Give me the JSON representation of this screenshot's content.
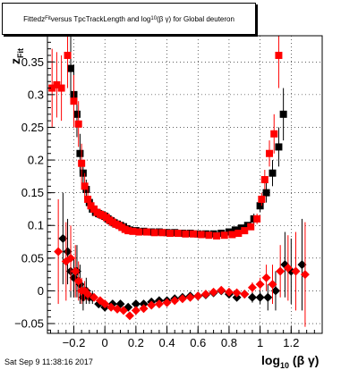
{
  "title": {
    "pre": "Fitted ",
    "z_main": "z",
    "z_sub": "Fit",
    "mid": " versus TpcTrackLength and log",
    "log_sub": "10",
    "post": "(β γ) for Global deuteron"
  },
  "timestamp": "Sat Sep  9 11:38:16 2017",
  "chart_data": {
    "type": "scatter",
    "title": "Fitted z_Fit versus TpcTrackLength and log10(β γ) for Global deuteron",
    "xlabel": "log10(β γ)",
    "ylabel": "z_Fit",
    "xlim": [
      -0.37,
      1.4
    ],
    "ylim": [
      -0.065,
      0.39
    ],
    "x_ticks": [
      -0.2,
      0,
      0.2,
      0.4,
      0.6,
      0.8,
      1,
      1.2
    ],
    "x_tick_labels": [
      "−0.2",
      "0",
      "0.2",
      "0.4",
      "0.6",
      "0.8",
      "1",
      "1.2"
    ],
    "y_ticks": [
      -0.05,
      0,
      0.05,
      0.1,
      0.15,
      0.2,
      0.25,
      0.3,
      0.35
    ],
    "y_tick_labels": [
      "−0.05",
      "0",
      "0.05",
      "0.1",
      "0.15",
      "0.2",
      "0.25",
      "0.3",
      "0.35"
    ],
    "grid": true,
    "series": [
      {
        "marker": "square",
        "color": "#000000",
        "points": [
          {
            "x": -0.22,
            "y": 0.34,
            "e": 0.05
          },
          {
            "x": -0.2,
            "y": 0.3,
            "e": 0.04
          },
          {
            "x": -0.18,
            "y": 0.27,
            "e": 0.035
          },
          {
            "x": -0.16,
            "y": 0.21,
            "e": 0.03
          },
          {
            "x": -0.14,
            "y": 0.18,
            "e": 0.02
          },
          {
            "x": -0.12,
            "y": 0.155,
            "e": 0.015
          },
          {
            "x": -0.1,
            "y": 0.135,
            "e": 0.01
          },
          {
            "x": -0.08,
            "y": 0.125,
            "e": 0.008
          },
          {
            "x": -0.06,
            "y": 0.12,
            "e": 0.006
          },
          {
            "x": -0.04,
            "y": 0.118,
            "e": 0.005
          },
          {
            "x": -0.02,
            "y": 0.116,
            "e": 0.004
          },
          {
            "x": 0.0,
            "y": 0.114,
            "e": 0.003
          },
          {
            "x": 0.02,
            "y": 0.11,
            "e": 0.003
          },
          {
            "x": 0.04,
            "y": 0.107,
            "e": 0.003
          },
          {
            "x": 0.06,
            "y": 0.104,
            "e": 0.003
          },
          {
            "x": 0.08,
            "y": 0.102,
            "e": 0.003
          },
          {
            "x": 0.1,
            "y": 0.1,
            "e": 0.003
          },
          {
            "x": 0.12,
            "y": 0.098,
            "e": 0.003
          },
          {
            "x": 0.14,
            "y": 0.095,
            "e": 0.003
          },
          {
            "x": 0.16,
            "y": 0.093,
            "e": 0.003
          },
          {
            "x": 0.2,
            "y": 0.092,
            "e": 0.003
          },
          {
            "x": 0.25,
            "y": 0.091,
            "e": 0.003
          },
          {
            "x": 0.3,
            "y": 0.09,
            "e": 0.003
          },
          {
            "x": 0.35,
            "y": 0.09,
            "e": 0.003
          },
          {
            "x": 0.4,
            "y": 0.089,
            "e": 0.003
          },
          {
            "x": 0.45,
            "y": 0.089,
            "e": 0.003
          },
          {
            "x": 0.5,
            "y": 0.088,
            "e": 0.003
          },
          {
            "x": 0.55,
            "y": 0.088,
            "e": 0.003
          },
          {
            "x": 0.6,
            "y": 0.087,
            "e": 0.003
          },
          {
            "x": 0.65,
            "y": 0.087,
            "e": 0.003
          },
          {
            "x": 0.7,
            "y": 0.087,
            "e": 0.003
          },
          {
            "x": 0.75,
            "y": 0.088,
            "e": 0.003
          },
          {
            "x": 0.8,
            "y": 0.09,
            "e": 0.003
          },
          {
            "x": 0.84,
            "y": 0.093,
            "e": 0.003
          },
          {
            "x": 0.88,
            "y": 0.096,
            "e": 0.004
          },
          {
            "x": 0.92,
            "y": 0.1,
            "e": 0.005
          },
          {
            "x": 0.96,
            "y": 0.11,
            "e": 0.008
          },
          {
            "x": 1.0,
            "y": 0.13,
            "e": 0.01
          },
          {
            "x": 1.04,
            "y": 0.15,
            "e": 0.015
          },
          {
            "x": 1.08,
            "y": 0.18,
            "e": 0.02
          },
          {
            "x": 1.12,
            "y": 0.22,
            "e": 0.03
          },
          {
            "x": 1.15,
            "y": 0.27,
            "e": 0.04
          }
        ]
      },
      {
        "marker": "square",
        "color": "#ff0000",
        "points": [
          {
            "x": -0.34,
            "y": 0.31,
            "e": 0.06
          },
          {
            "x": -0.31,
            "y": 0.315,
            "e": 0.05
          },
          {
            "x": -0.28,
            "y": 0.31,
            "e": 0.05
          },
          {
            "x": -0.24,
            "y": 0.36,
            "e": 0.05
          },
          {
            "x": -0.2,
            "y": 0.29,
            "e": 0.04
          },
          {
            "x": -0.17,
            "y": 0.255,
            "e": 0.035
          },
          {
            "x": -0.15,
            "y": 0.195,
            "e": 0.03
          },
          {
            "x": -0.13,
            "y": 0.16,
            "e": 0.02
          },
          {
            "x": -0.11,
            "y": 0.14,
            "e": 0.015
          },
          {
            "x": -0.09,
            "y": 0.13,
            "e": 0.01
          },
          {
            "x": -0.07,
            "y": 0.125,
            "e": 0.008
          },
          {
            "x": -0.05,
            "y": 0.12,
            "e": 0.006
          },
          {
            "x": -0.03,
            "y": 0.117,
            "e": 0.005
          },
          {
            "x": -0.01,
            "y": 0.115,
            "e": 0.004
          },
          {
            "x": 0.01,
            "y": 0.112,
            "e": 0.003
          },
          {
            "x": 0.03,
            "y": 0.108,
            "e": 0.003
          },
          {
            "x": 0.05,
            "y": 0.105,
            "e": 0.003
          },
          {
            "x": 0.07,
            "y": 0.102,
            "e": 0.003
          },
          {
            "x": 0.09,
            "y": 0.1,
            "e": 0.003
          },
          {
            "x": 0.11,
            "y": 0.097,
            "e": 0.003
          },
          {
            "x": 0.13,
            "y": 0.094,
            "e": 0.003
          },
          {
            "x": 0.15,
            "y": 0.092,
            "e": 0.003
          },
          {
            "x": 0.18,
            "y": 0.091,
            "e": 0.003
          },
          {
            "x": 0.22,
            "y": 0.09,
            "e": 0.003
          },
          {
            "x": 0.27,
            "y": 0.09,
            "e": 0.003
          },
          {
            "x": 0.32,
            "y": 0.089,
            "e": 0.003
          },
          {
            "x": 0.37,
            "y": 0.089,
            "e": 0.003
          },
          {
            "x": 0.42,
            "y": 0.088,
            "e": 0.003
          },
          {
            "x": 0.47,
            "y": 0.088,
            "e": 0.003
          },
          {
            "x": 0.52,
            "y": 0.087,
            "e": 0.003
          },
          {
            "x": 0.57,
            "y": 0.087,
            "e": 0.003
          },
          {
            "x": 0.62,
            "y": 0.086,
            "e": 0.003
          },
          {
            "x": 0.67,
            "y": 0.085,
            "e": 0.003
          },
          {
            "x": 0.72,
            "y": 0.084,
            "e": 0.003
          },
          {
            "x": 0.77,
            "y": 0.085,
            "e": 0.003
          },
          {
            "x": 0.82,
            "y": 0.086,
            "e": 0.003
          },
          {
            "x": 0.86,
            "y": 0.088,
            "e": 0.003
          },
          {
            "x": 0.9,
            "y": 0.092,
            "e": 0.004
          },
          {
            "x": 0.94,
            "y": 0.098,
            "e": 0.005
          },
          {
            "x": 0.98,
            "y": 0.11,
            "e": 0.008
          },
          {
            "x": 1.01,
            "y": 0.14,
            "e": 0.01
          },
          {
            "x": 1.03,
            "y": 0.17,
            "e": 0.015
          },
          {
            "x": 1.06,
            "y": 0.21,
            "e": 0.02
          },
          {
            "x": 1.09,
            "y": 0.24,
            "e": 0.03
          },
          {
            "x": 1.12,
            "y": 0.36,
            "e": 0.05
          }
        ]
      },
      {
        "marker": "diamond",
        "color": "#000000",
        "points": [
          {
            "x": -0.27,
            "y": 0.08,
            "e": 0.07
          },
          {
            "x": -0.24,
            "y": 0.06,
            "e": 0.05
          },
          {
            "x": -0.22,
            "y": 0.03,
            "e": 0.04
          },
          {
            "x": -0.2,
            "y": 0.02,
            "e": 0.03
          },
          {
            "x": -0.18,
            "y": 0.03,
            "e": 0.04
          },
          {
            "x": -0.16,
            "y": 0.01,
            "e": 0.03
          },
          {
            "x": -0.14,
            "y": -0.01,
            "e": 0.02
          },
          {
            "x": -0.12,
            "y": 0.0,
            "e": 0.02
          },
          {
            "x": -0.1,
            "y": -0.01,
            "e": 0.01
          },
          {
            "x": -0.08,
            "y": -0.01,
            "e": 0.01
          },
          {
            "x": -0.04,
            "y": -0.02,
            "e": 0.005
          },
          {
            "x": 0.0,
            "y": -0.025,
            "e": 0.004
          },
          {
            "x": 0.05,
            "y": -0.02,
            "e": 0.003
          },
          {
            "x": 0.1,
            "y": -0.02,
            "e": 0.003
          },
          {
            "x": 0.15,
            "y": -0.025,
            "e": 0.003
          },
          {
            "x": 0.2,
            "y": -0.02,
            "e": 0.003
          },
          {
            "x": 0.25,
            "y": -0.02,
            "e": 0.003
          },
          {
            "x": 0.3,
            "y": -0.017,
            "e": 0.003
          },
          {
            "x": 0.35,
            "y": -0.015,
            "e": 0.003
          },
          {
            "x": 0.4,
            "y": -0.015,
            "e": 0.003
          },
          {
            "x": 0.45,
            "y": -0.012,
            "e": 0.003
          },
          {
            "x": 0.5,
            "y": -0.01,
            "e": 0.003
          },
          {
            "x": 0.55,
            "y": -0.008,
            "e": 0.003
          },
          {
            "x": 0.6,
            "y": -0.008,
            "e": 0.003
          },
          {
            "x": 0.65,
            "y": -0.006,
            "e": 0.003
          },
          {
            "x": 0.7,
            "y": -0.003,
            "e": 0.003
          },
          {
            "x": 0.75,
            "y": 0.0,
            "e": 0.003
          },
          {
            "x": 0.8,
            "y": -0.005,
            "e": 0.003
          },
          {
            "x": 0.85,
            "y": -0.01,
            "e": 0.004
          },
          {
            "x": 0.9,
            "y": -0.005,
            "e": 0.005
          },
          {
            "x": 0.95,
            "y": -0.01,
            "e": 0.008
          },
          {
            "x": 1.0,
            "y": -0.01,
            "e": 0.01
          },
          {
            "x": 1.05,
            "y": -0.01,
            "e": 0.02
          },
          {
            "x": 1.1,
            "y": 0.0,
            "e": 0.03
          },
          {
            "x": 1.16,
            "y": 0.04,
            "e": 0.05
          },
          {
            "x": 1.2,
            "y": 0.03,
            "e": 0.05
          },
          {
            "x": 1.27,
            "y": 0.04,
            "e": 0.07
          }
        ]
      },
      {
        "marker": "diamond",
        "color": "#ff0000",
        "points": [
          {
            "x": -0.3,
            "y": 0.06,
            "e": 0.08
          },
          {
            "x": -0.25,
            "y": 0.045,
            "e": 0.06
          },
          {
            "x": -0.22,
            "y": 0.05,
            "e": 0.05
          },
          {
            "x": -0.19,
            "y": 0.03,
            "e": 0.04
          },
          {
            "x": -0.17,
            "y": 0.015,
            "e": 0.03
          },
          {
            "x": -0.15,
            "y": 0.0,
            "e": 0.02
          },
          {
            "x": -0.13,
            "y": 0.0,
            "e": 0.015
          },
          {
            "x": -0.11,
            "y": -0.005,
            "e": 0.01
          },
          {
            "x": -0.07,
            "y": -0.01,
            "e": 0.005
          },
          {
            "x": -0.03,
            "y": -0.015,
            "e": 0.004
          },
          {
            "x": 0.0,
            "y": -0.02,
            "e": 0.004
          },
          {
            "x": 0.04,
            "y": -0.025,
            "e": 0.003
          },
          {
            "x": 0.08,
            "y": -0.028,
            "e": 0.003
          },
          {
            "x": 0.12,
            "y": -0.03,
            "e": 0.003
          },
          {
            "x": 0.16,
            "y": -0.038,
            "e": 0.003
          },
          {
            "x": 0.2,
            "y": -0.03,
            "e": 0.003
          },
          {
            "x": 0.25,
            "y": -0.027,
            "e": 0.003
          },
          {
            "x": 0.3,
            "y": -0.022,
            "e": 0.003
          },
          {
            "x": 0.35,
            "y": -0.02,
            "e": 0.003
          },
          {
            "x": 0.4,
            "y": -0.018,
            "e": 0.003
          },
          {
            "x": 0.45,
            "y": -0.015,
            "e": 0.003
          },
          {
            "x": 0.5,
            "y": -0.012,
            "e": 0.003
          },
          {
            "x": 0.55,
            "y": -0.01,
            "e": 0.003
          },
          {
            "x": 0.6,
            "y": -0.008,
            "e": 0.003
          },
          {
            "x": 0.65,
            "y": -0.005,
            "e": 0.003
          },
          {
            "x": 0.7,
            "y": -0.002,
            "e": 0.003
          },
          {
            "x": 0.75,
            "y": 0.001,
            "e": 0.003
          },
          {
            "x": 0.8,
            "y": -0.002,
            "e": 0.003
          },
          {
            "x": 0.85,
            "y": -0.003,
            "e": 0.004
          },
          {
            "x": 0.9,
            "y": -0.005,
            "e": 0.005
          },
          {
            "x": 0.95,
            "y": 0.005,
            "e": 0.008
          },
          {
            "x": 1.0,
            "y": 0.01,
            "e": 0.01
          },
          {
            "x": 1.04,
            "y": 0.02,
            "e": 0.02
          },
          {
            "x": 1.08,
            "y": 0.01,
            "e": 0.03
          },
          {
            "x": 1.13,
            "y": 0.03,
            "e": 0.04
          },
          {
            "x": 1.18,
            "y": 0.035,
            "e": 0.05
          },
          {
            "x": 1.23,
            "y": 0.03,
            "e": 0.06
          },
          {
            "x": 1.29,
            "y": 0.025,
            "e": 0.08
          }
        ]
      }
    ]
  }
}
